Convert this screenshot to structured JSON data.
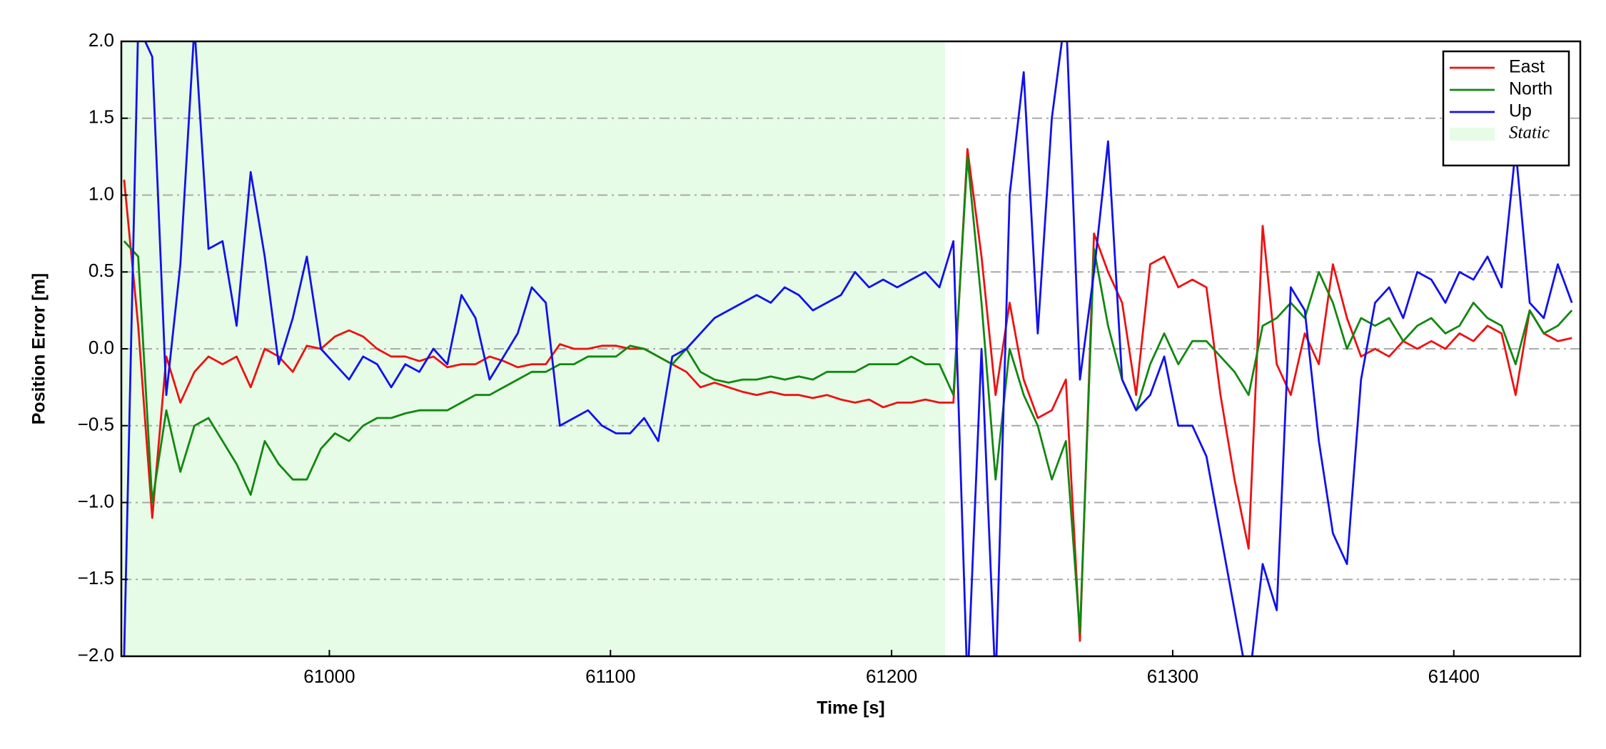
{
  "chart_data": {
    "type": "line",
    "xlabel": "Time [s]",
    "ylabel": "Position Error [m]",
    "xlim": [
      60926,
      61445
    ],
    "ylim": [
      -2,
      2
    ],
    "xticks": [
      61000,
      61100,
      61200,
      61300,
      61400
    ],
    "yticks": [
      {
        "value": -2,
        "label": "−2.0"
      },
      {
        "value": -1.5,
        "label": "−1.5"
      },
      {
        "value": -1,
        "label": "−1.0"
      },
      {
        "value": -0.5,
        "label": "−0.5"
      },
      {
        "value": 0,
        "label": "0.0"
      },
      {
        "value": 0.5,
        "label": "0.5"
      },
      {
        "value": 1,
        "label": "1.0"
      },
      {
        "value": 1.5,
        "label": "1.5"
      },
      {
        "value": 2,
        "label": "2.0"
      }
    ],
    "grid": true,
    "legend": "upper right",
    "spans": [
      {
        "name": "Static",
        "start": 60926,
        "end": 61219,
        "color": "#e6fce6"
      }
    ],
    "x": [
      60927,
      60932,
      60937,
      60942,
      60947,
      60952,
      60957,
      60962,
      60967,
      60972,
      60977,
      60982,
      60987,
      60992,
      60997,
      61002,
      61007,
      61012,
      61017,
      61022,
      61027,
      61032,
      61037,
      61042,
      61047,
      61052,
      61057,
      61062,
      61067,
      61072,
      61077,
      61082,
      61087,
      61092,
      61097,
      61102,
      61107,
      61112,
      61117,
      61122,
      61127,
      61132,
      61137,
      61142,
      61147,
      61152,
      61157,
      61162,
      61167,
      61172,
      61177,
      61182,
      61187,
      61192,
      61197,
      61202,
      61207,
      61212,
      61217,
      61222,
      61227,
      61232,
      61237,
      61242,
      61247,
      61252,
      61257,
      61262,
      61267,
      61272,
      61277,
      61282,
      61287,
      61292,
      61297,
      61302,
      61307,
      61312,
      61317,
      61322,
      61327,
      61332,
      61337,
      61342,
      61347,
      61352,
      61357,
      61362,
      61367,
      61372,
      61377,
      61382,
      61387,
      61392,
      61397,
      61402,
      61407,
      61412,
      61417,
      61422,
      61427,
      61432,
      61437,
      61442
    ],
    "series": [
      {
        "name": "East",
        "color": "#ee1111",
        "values": [
          1.1,
          0.15,
          -1.1,
          -0.05,
          -0.35,
          -0.15,
          -0.05,
          -0.1,
          -0.05,
          -0.25,
          0.0,
          -0.05,
          -0.15,
          0.02,
          0.0,
          0.08,
          0.12,
          0.08,
          0.0,
          -0.05,
          -0.05,
          -0.08,
          -0.05,
          -0.12,
          -0.1,
          -0.1,
          -0.05,
          -0.08,
          -0.12,
          -0.1,
          -0.1,
          0.03,
          0.0,
          0.0,
          0.02,
          0.02,
          0.0,
          0.0,
          -0.05,
          -0.1,
          -0.15,
          -0.25,
          -0.22,
          -0.25,
          -0.28,
          -0.3,
          -0.28,
          -0.3,
          -0.3,
          -0.32,
          -0.3,
          -0.33,
          -0.35,
          -0.33,
          -0.38,
          -0.35,
          -0.35,
          -0.33,
          -0.35,
          -0.35,
          1.3,
          0.6,
          -0.3,
          0.3,
          -0.2,
          -0.45,
          -0.4,
          -0.2,
          -1.9,
          0.75,
          0.5,
          0.3,
          -0.3,
          0.55,
          0.6,
          0.4,
          0.45,
          0.4,
          -0.3,
          -0.85,
          -1.3,
          0.8,
          -0.1,
          -0.3,
          0.1,
          -0.1,
          0.55,
          0.2,
          -0.05,
          0.0,
          -0.05,
          0.05,
          0.0,
          0.05,
          0.0,
          0.1,
          0.05,
          0.15,
          0.1,
          -0.3,
          0.25,
          0.1,
          0.05,
          0.07
        ]
      },
      {
        "name": "North",
        "color": "#118811",
        "values": [
          0.7,
          0.6,
          -1.0,
          -0.4,
          -0.8,
          -0.5,
          -0.45,
          -0.6,
          -0.75,
          -0.95,
          -0.6,
          -0.75,
          -0.85,
          -0.85,
          -0.65,
          -0.55,
          -0.6,
          -0.5,
          -0.45,
          -0.45,
          -0.42,
          -0.4,
          -0.4,
          -0.4,
          -0.35,
          -0.3,
          -0.3,
          -0.25,
          -0.2,
          -0.15,
          -0.15,
          -0.1,
          -0.1,
          -0.05,
          -0.05,
          -0.05,
          0.02,
          0.0,
          -0.05,
          -0.1,
          0.0,
          -0.15,
          -0.2,
          -0.22,
          -0.2,
          -0.2,
          -0.18,
          -0.2,
          -0.18,
          -0.2,
          -0.15,
          -0.15,
          -0.15,
          -0.1,
          -0.1,
          -0.1,
          -0.05,
          -0.1,
          -0.1,
          -0.3,
          1.25,
          0.3,
          -0.85,
          0.0,
          -0.3,
          -0.5,
          -0.85,
          -0.6,
          -1.85,
          0.65,
          0.15,
          -0.2,
          -0.4,
          -0.1,
          0.1,
          -0.1,
          0.05,
          0.05,
          -0.05,
          -0.15,
          -0.3,
          0.15,
          0.2,
          0.3,
          0.2,
          0.5,
          0.3,
          0.0,
          0.2,
          0.15,
          0.2,
          0.05,
          0.15,
          0.2,
          0.1,
          0.15,
          0.3,
          0.2,
          0.15,
          -0.1,
          0.25,
          0.1,
          0.15,
          0.25
        ]
      },
      {
        "name": "Up",
        "color": "#1111ee",
        "values": [
          -2.0,
          2.1,
          1.9,
          -0.3,
          0.55,
          2.1,
          0.65,
          0.7,
          0.15,
          1.15,
          0.6,
          -0.1,
          0.2,
          0.6,
          0.0,
          -0.1,
          -0.2,
          -0.05,
          -0.1,
          -0.25,
          -0.1,
          -0.15,
          0.0,
          -0.1,
          0.35,
          0.2,
          -0.2,
          -0.05,
          0.1,
          0.4,
          0.3,
          -0.5,
          -0.45,
          -0.4,
          -0.5,
          -0.55,
          -0.55,
          -0.45,
          -0.6,
          -0.05,
          0.0,
          0.1,
          0.2,
          0.25,
          0.3,
          0.35,
          0.3,
          0.4,
          0.35,
          0.25,
          0.3,
          0.35,
          0.5,
          0.4,
          0.45,
          0.4,
          0.45,
          0.5,
          0.4,
          0.7,
          -2.2,
          0.0,
          -2.2,
          1.0,
          1.8,
          0.1,
          1.5,
          2.2,
          -0.2,
          0.5,
          1.35,
          -0.2,
          -0.4,
          -0.3,
          -0.05,
          -0.5,
          -0.5,
          -0.7,
          -1.2,
          -1.7,
          -2.2,
          -1.4,
          -1.7,
          0.4,
          0.25,
          -0.6,
          -1.2,
          -1.4,
          -0.2,
          0.3,
          0.4,
          0.2,
          0.5,
          0.45,
          0.3,
          0.5,
          0.45,
          0.6,
          0.4,
          1.3,
          0.3,
          0.2,
          0.55,
          0.3
        ]
      }
    ]
  }
}
